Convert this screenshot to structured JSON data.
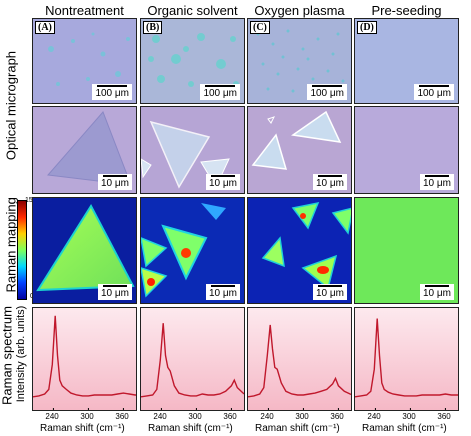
{
  "columns": [
    {
      "letter": "(A)",
      "title": "Nontreatment"
    },
    {
      "letter": "(B)",
      "title": "Organic solvent"
    },
    {
      "letter": "(C)",
      "title": "Oxygen plasma"
    },
    {
      "letter": "(D)",
      "title": "Pre-seeding"
    }
  ],
  "row_labels": {
    "optical": "Optical micrograph",
    "mapping": "Raman mapping",
    "spectrum_line1": "Raman spectrum",
    "spectrum_line2": "Intensity (arb. units)"
  },
  "scale": {
    "large": "100 μm",
    "small": "10 μm"
  },
  "colorbar": {
    "max": "150 000",
    "zero": "0"
  },
  "xaxis": {
    "label": "Raman shift (cm⁻¹)",
    "ticks": [
      "240",
      "300",
      "360"
    ]
  },
  "colors": {
    "substrate": "#a9a8d8",
    "mapping_bg": "#0a2aa8",
    "spectrum_line": "#c0182c",
    "spectrum_bg": "#f7c7d3"
  },
  "chart_data": [
    {
      "type": "line",
      "xlabel": "Raman shift (cm⁻¹)",
      "ylabel": "Intensity (arb. units)",
      "xlim": [
        205,
        385
      ],
      "x": [
        205,
        215,
        225,
        232,
        238,
        243,
        247,
        251,
        255,
        262,
        270,
        280,
        290,
        300,
        310,
        320,
        330,
        340,
        350,
        360,
        370,
        380,
        385
      ],
      "values": [
        0.1,
        0.11,
        0.13,
        0.18,
        0.45,
        0.98,
        0.55,
        0.28,
        0.22,
        0.18,
        0.14,
        0.12,
        0.11,
        0.11,
        0.12,
        0.12,
        0.12,
        0.12,
        0.13,
        0.14,
        0.13,
        0.12,
        0.12
      ]
    },
    {
      "type": "line",
      "xlabel": "Raman shift (cm⁻¹)",
      "ylabel": "Intensity (arb. units)",
      "xlim": [
        205,
        385
      ],
      "x": [
        205,
        215,
        225,
        232,
        238,
        243,
        247,
        251,
        255,
        262,
        270,
        280,
        290,
        300,
        310,
        320,
        330,
        340,
        350,
        360,
        365,
        370,
        380,
        385
      ],
      "values": [
        0.1,
        0.11,
        0.12,
        0.18,
        0.5,
        0.9,
        0.55,
        0.42,
        0.38,
        0.22,
        0.14,
        0.12,
        0.11,
        0.11,
        0.13,
        0.12,
        0.12,
        0.13,
        0.16,
        0.22,
        0.28,
        0.2,
        0.14,
        0.12
      ]
    },
    {
      "type": "line",
      "xlabel": "Raman shift (cm⁻¹)",
      "ylabel": "Intensity (arb. units)",
      "xlim": [
        205,
        385
      ],
      "x": [
        205,
        215,
        225,
        232,
        238,
        243,
        247,
        251,
        255,
        262,
        270,
        280,
        290,
        300,
        310,
        320,
        330,
        340,
        350,
        355,
        360,
        370,
        380,
        385
      ],
      "values": [
        0.1,
        0.11,
        0.13,
        0.2,
        0.55,
        0.88,
        0.62,
        0.42,
        0.4,
        0.25,
        0.16,
        0.13,
        0.12,
        0.12,
        0.13,
        0.14,
        0.16,
        0.18,
        0.24,
        0.3,
        0.22,
        0.16,
        0.13,
        0.12
      ]
    },
    {
      "type": "line",
      "xlabel": "Raman shift (cm⁻¹)",
      "ylabel": "Intensity (arb. units)",
      "xlim": [
        205,
        385
      ],
      "x": [
        205,
        215,
        225,
        232,
        238,
        243,
        247,
        251,
        255,
        262,
        270,
        280,
        290,
        300,
        310,
        320,
        330,
        340,
        350,
        360,
        370,
        380,
        385
      ],
      "values": [
        0.1,
        0.11,
        0.12,
        0.16,
        0.4,
        0.95,
        0.55,
        0.25,
        0.18,
        0.15,
        0.13,
        0.12,
        0.11,
        0.11,
        0.11,
        0.12,
        0.12,
        0.12,
        0.12,
        0.13,
        0.12,
        0.12,
        0.12
      ]
    }
  ]
}
